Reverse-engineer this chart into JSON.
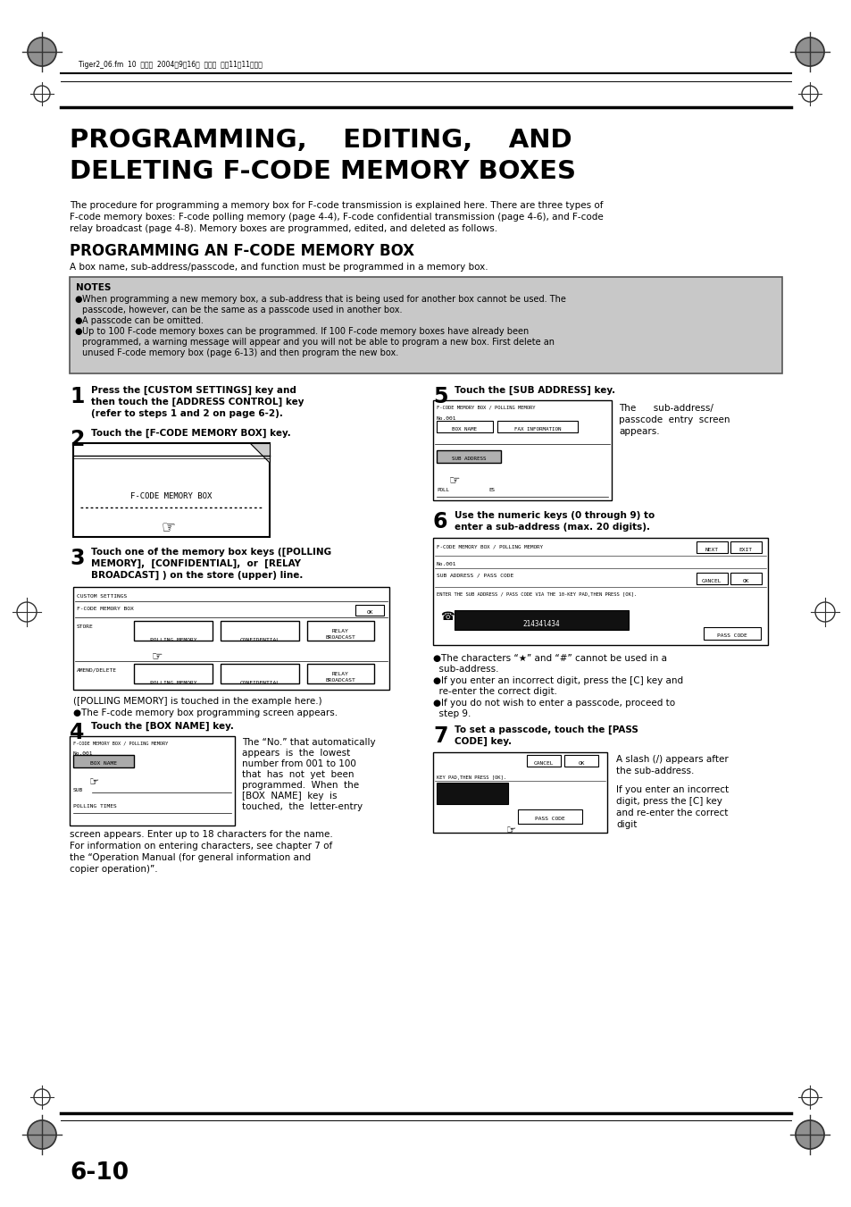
{
  "bg_color": "#ffffff",
  "page_width": 9.54,
  "page_height": 13.51,
  "header_text": "Tiger2_06.fm  10  ページ  2004年9月16日  木曜日  午前11時11時全11分8分",
  "title_line1": "PROGRAMMING,    EDITING,    AND",
  "title_line2": "DELETING F-CODE MEMORY BOXES",
  "intro_text1": "The procedure for programming a memory box for F-code transmission is explained here. There are three types of",
  "intro_text2": "F-code memory boxes: F-code polling memory (page 4-4), F-code confidential transmission (page 4-6), and F-code",
  "intro_text3": "relay broadcast (page 4-8). Memory boxes are programmed, edited, and deleted as follows.",
  "section_title": "PROGRAMMING AN F-CODE MEMORY BOX",
  "section_intro": "A box name, sub-address/passcode, and function must be programmed in a memory box.",
  "notes_bg": "#c8c8c8",
  "notes_title": "NOTES",
  "note1a": "When programming a new memory box, a sub-address that is being used for another box cannot be used. The",
  "note1b": "passcode, however, can be the same as a passcode used in another box.",
  "note2": "A passcode can be omitted.",
  "note3a": "Up to 100 F-code memory boxes can be programmed. If 100 F-code memory boxes have already been",
  "note3b": "programmed, a warning message will appear and you will not be able to program a new box. First delete an",
  "note3c": "unused F-code memory box (page 6-13) and then program the new box.",
  "step1_num": "1",
  "step1_text": "Press the [CUSTOM SETTINGS] key and\nthen touch the [ADDRESS CONTROL] key\n(refer to steps 1 and 2 on page 6-2).",
  "step2_num": "2",
  "step2_text": "Touch the [F-CODE MEMORY BOX] key.",
  "step3_num": "3",
  "step3_text": "Touch one of the memory box keys ([POLLING\nMEMORY],  [CONFIDENTIAL],  or  [RELAY\nBROADCAST] ) on the store (upper) line.",
  "step3_note1": "([POLLING MEMORY] is touched in the example here.)",
  "step3_note2": "●The F-code memory box programming screen appears.",
  "step4_num": "4",
  "step4_text": "Touch the [BOX NAME] key.",
  "step4_note1": "The “No.” that automatically",
  "step4_note2": "appears  is  the  lowest",
  "step4_note3": "number from 001 to 100",
  "step4_note4": "that  has  not  yet  been",
  "step4_note5": "programmed.  When  the",
  "step4_note6": "[BOX  NAME]  key  is",
  "step4_note7": "touched,  the  letter-entry",
  "step4_note8": "screen appears. Enter up to 18 characters for the name.",
  "step4_note9": "For information on entering characters, see chapter 7 of",
  "step4_note10": "the “Operation Manual (for general information and",
  "step4_note11": "copier operation)”.",
  "step5_num": "5",
  "step5_text": "Touch the [SUB ADDRESS] key.",
  "step5_note1": "The      sub-address/",
  "step5_note2": "passcode  entry  screen",
  "step5_note3": "appears.",
  "step6_num": "6",
  "step6_text1": "Use the numeric keys (0 through 9) to",
  "step6_text2": "enter a sub-address (max. 20 digits).",
  "step6_note1a": "●The characters “★” and “#” cannot be used in a",
  "step6_note1b": "  sub-address.",
  "step6_note2a": "●If you enter an incorrect digit, press the [C] key and",
  "step6_note2b": "  re-enter the correct digit.",
  "step6_note3a": "●If you do not wish to enter a passcode, proceed to",
  "step6_note3b": "  step 9.",
  "step7_num": "7",
  "step7_text1": "To set a passcode, touch the [PASS",
  "step7_text2": "CODE] key.",
  "step7_note1": "A slash (/) appears after",
  "step7_note2": "the sub-address.",
  "step7_note3": "If you enter an incorrect",
  "step7_note4": "digit, press the [C] key",
  "step7_note5": "and re-enter the correct",
  "step7_note6": "digit",
  "page_num": "6-10"
}
